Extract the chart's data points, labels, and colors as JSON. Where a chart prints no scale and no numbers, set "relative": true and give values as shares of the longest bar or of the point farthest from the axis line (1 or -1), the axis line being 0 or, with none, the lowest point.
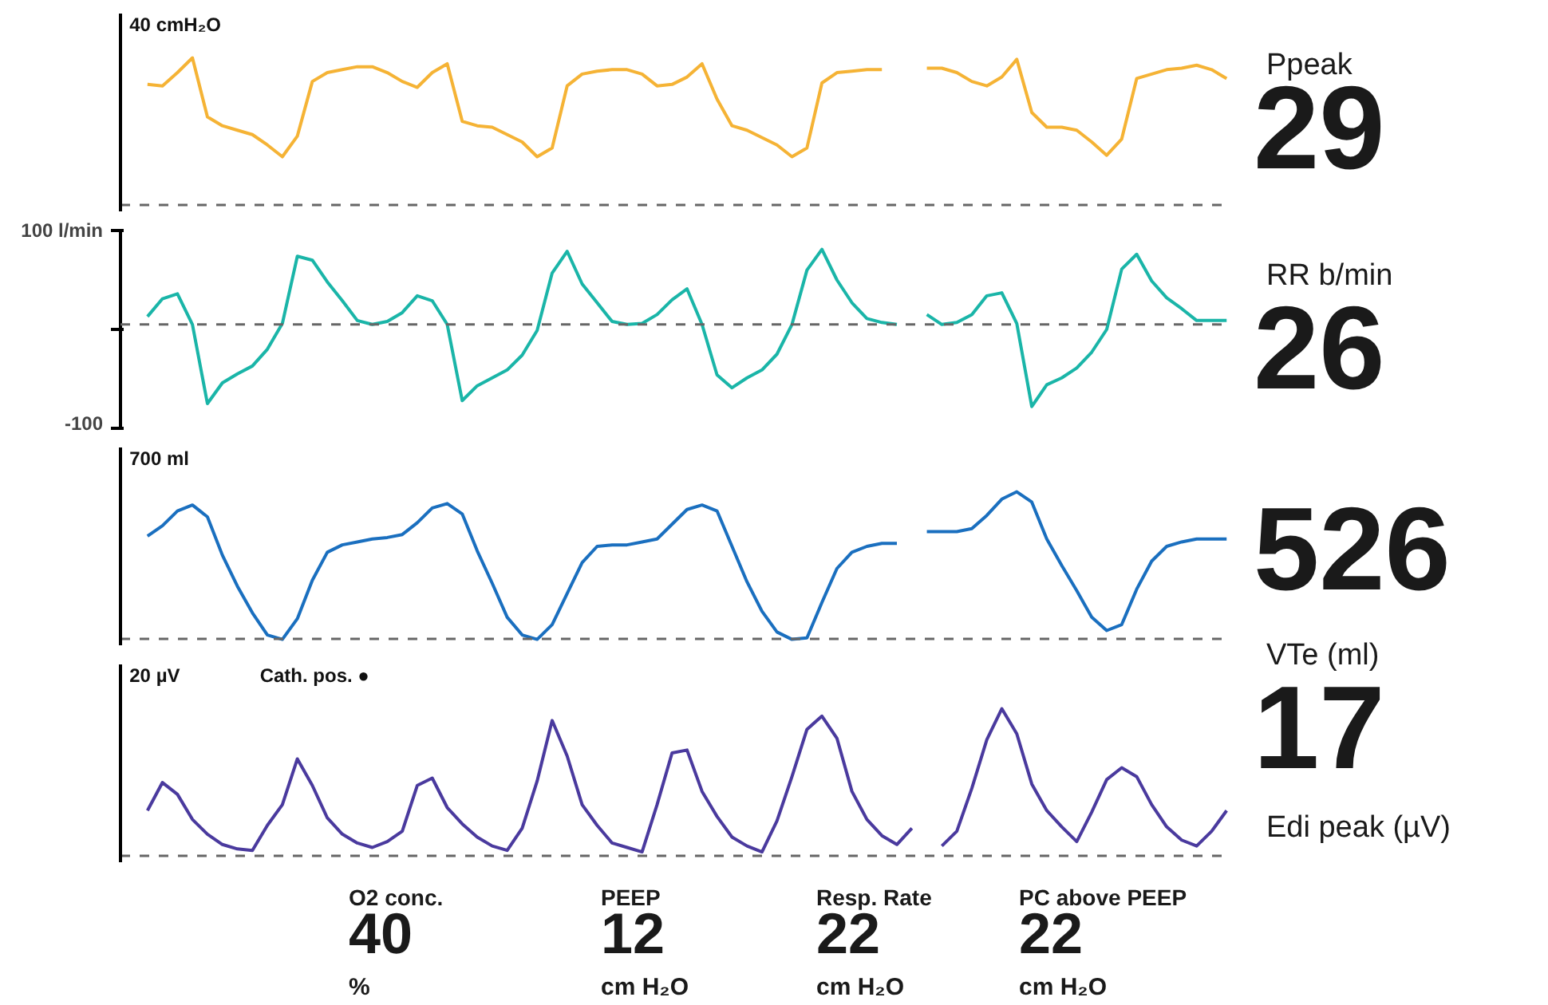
{
  "chart_data": [
    {
      "type": "line",
      "relative": true,
      "annotations": [
        "40  cmH₂O"
      ],
      "categories": [
        null,
        null,
        null,
        null,
        null,
        null,
        null,
        null,
        null,
        null,
        null,
        null,
        null,
        null,
        null,
        null,
        null,
        null,
        null,
        null,
        null,
        null,
        null,
        null,
        null,
        null,
        null,
        null,
        null,
        null,
        null,
        null,
        null,
        null,
        null,
        null,
        null,
        null,
        null,
        null,
        null,
        null,
        null,
        null,
        null,
        null,
        null,
        null,
        null,
        null,
        null,
        null,
        null,
        null,
        null,
        null,
        null,
        null,
        null,
        null,
        null,
        null,
        null,
        null,
        null,
        null,
        null,
        null,
        null,
        null,
        null,
        null,
        null
      ],
      "series": [
        {
          "color": "#f5b335",
          "values": [
            0.82,
            0.81,
            0.9,
            1.0,
            0.6,
            0.54,
            0.51,
            0.48,
            0.41,
            0.33,
            0.47,
            0.84,
            0.9,
            0.92,
            0.94,
            0.94,
            0.9,
            0.84,
            0.8,
            0.9,
            0.96,
            0.57,
            0.54,
            0.53,
            0.48,
            0.43,
            0.33,
            0.39,
            0.81,
            0.89,
            0.91,
            0.92,
            0.92,
            0.89,
            0.81,
            0.82,
            0.87,
            0.96,
            0.72,
            0.54,
            0.51,
            0.46,
            0.41,
            0.33,
            0.39,
            0.83,
            0.9,
            0.91,
            0.92,
            0.92,
            null,
            null,
            null,
            null,
            null,
            null,
            null,
            null,
            null,
            null,
            null,
            null,
            null,
            null,
            null,
            null,
            null,
            null,
            null,
            null,
            null,
            null,
            null
          ]
        },
        {
          "color": "#f5b335",
          "values": [
            null,
            null,
            null,
            null,
            null,
            null,
            null,
            null,
            null,
            null,
            null,
            null,
            null,
            null,
            null,
            null,
            null,
            null,
            null,
            null,
            null,
            null,
            null,
            null,
            null,
            null,
            null,
            null,
            null,
            null,
            null,
            null,
            null,
            null,
            null,
            null,
            null,
            null,
            null,
            null,
            null,
            null,
            null,
            null,
            null,
            null,
            null,
            null,
            null,
            null,
            null,
            null,
            0.93,
            0.93,
            0.9,
            0.84,
            0.81,
            0.87,
            0.99,
            0.63,
            0.53,
            0.53,
            0.51,
            0.43,
            0.34,
            0.45,
            0.86,
            0.89,
            0.92,
            0.93,
            0.95,
            0.92,
            0.86
          ]
        }
      ]
    },
    {
      "type": "line",
      "ylim": [
        -100,
        100
      ],
      "yticks": [
        {
          "value": 100,
          "label": "100 l/min"
        },
        {
          "value": 0,
          "label": null
        },
        -100
      ],
      "categories": [
        null,
        null,
        null,
        null,
        null,
        null,
        null,
        null,
        null,
        null,
        null,
        null,
        null,
        null,
        null,
        null,
        null,
        null,
        null,
        null,
        null,
        null,
        null,
        null,
        null,
        null,
        null,
        null,
        null,
        null,
        null,
        null,
        null,
        null,
        null,
        null,
        null,
        null,
        null,
        null,
        null,
        null,
        null,
        null,
        null,
        null,
        null,
        null,
        null,
        null,
        null,
        null,
        null,
        null,
        null,
        null,
        null,
        null,
        null,
        null,
        null,
        null,
        null,
        null,
        null,
        null,
        null,
        null,
        null,
        null,
        null,
        null,
        null
      ],
      "series": [
        {
          "color": "#1ab5a8",
          "values": [
            13,
            31,
            36,
            5,
            -75,
            -54,
            -45,
            -37,
            -20,
            6,
            74,
            70,
            48,
            29,
            9,
            5,
            8,
            17,
            34,
            29,
            5,
            -72,
            -57,
            -49,
            -41,
            -26,
            -1,
            57,
            79,
            46,
            27,
            8,
            5,
            6,
            15,
            30,
            41,
            5,
            -46,
            -59,
            -49,
            -41,
            -25,
            5,
            60,
            81,
            50,
            27,
            11,
            7,
            5,
            null,
            null,
            null,
            null,
            null,
            null,
            null,
            null,
            null,
            null,
            null,
            null,
            null,
            null,
            null,
            null,
            null,
            null,
            null,
            null,
            null,
            null
          ]
        },
        {
          "color": "#1ab5a8",
          "values": [
            null,
            null,
            null,
            null,
            null,
            null,
            null,
            null,
            null,
            null,
            null,
            null,
            null,
            null,
            null,
            null,
            null,
            null,
            null,
            null,
            null,
            null,
            null,
            null,
            null,
            null,
            null,
            null,
            null,
            null,
            null,
            null,
            null,
            null,
            null,
            null,
            null,
            null,
            null,
            null,
            null,
            null,
            null,
            null,
            null,
            null,
            null,
            null,
            null,
            null,
            null,
            null,
            15,
            5,
            7,
            15,
            34,
            37,
            6,
            -78,
            -56,
            -49,
            -39,
            -23,
            0,
            61,
            76,
            49,
            32,
            21,
            9,
            9,
            9
          ]
        }
      ],
      "ref_lines": [
        {
          "axis": "y",
          "value": 5,
          "color": "#666666",
          "line_style": "dashed"
        }
      ]
    },
    {
      "type": "line",
      "relative": true,
      "annotations": [
        "700 ml"
      ],
      "categories": [
        null,
        null,
        null,
        null,
        null,
        null,
        null,
        null,
        null,
        null,
        null,
        null,
        null,
        null,
        null,
        null,
        null,
        null,
        null,
        null,
        null,
        null,
        null,
        null,
        null,
        null,
        null,
        null,
        null,
        null,
        null,
        null,
        null,
        null,
        null,
        null,
        null,
        null,
        null,
        null,
        null,
        null,
        null,
        null,
        null,
        null,
        null,
        null,
        null,
        null,
        null,
        null,
        null,
        null,
        null,
        null,
        null,
        null,
        null,
        null,
        null,
        null,
        null,
        null,
        null,
        null,
        null,
        null,
        null,
        null,
        null,
        null,
        null
      ],
      "series": [
        {
          "color": "#1a6fbf",
          "values": [
            0.7,
            0.77,
            0.87,
            0.91,
            0.83,
            0.57,
            0.36,
            0.18,
            0.03,
            0,
            0.14,
            0.4,
            0.59,
            0.64,
            0.66,
            0.68,
            0.69,
            0.71,
            0.79,
            0.89,
            0.92,
            0.85,
            0.6,
            0.38,
            0.15,
            0.03,
            0,
            0.1,
            0.31,
            0.52,
            0.63,
            0.64,
            0.64,
            0.66,
            0.68,
            0.78,
            0.88,
            0.91,
            0.87,
            0.63,
            0.39,
            0.19,
            0.05,
            0,
            0.01,
            0.25,
            0.48,
            0.59,
            0.63,
            0.65,
            0.65,
            null,
            null,
            null,
            null,
            null,
            null,
            null,
            null,
            null,
            null,
            null,
            null,
            null,
            null,
            null,
            null,
            null,
            null,
            null,
            null,
            null,
            null
          ]
        },
        {
          "color": "#1a6fbf",
          "values": [
            null,
            null,
            null,
            null,
            null,
            null,
            null,
            null,
            null,
            null,
            null,
            null,
            null,
            null,
            null,
            null,
            null,
            null,
            null,
            null,
            null,
            null,
            null,
            null,
            null,
            null,
            null,
            null,
            null,
            null,
            null,
            null,
            null,
            null,
            null,
            null,
            null,
            null,
            null,
            null,
            null,
            null,
            null,
            null,
            null,
            null,
            null,
            null,
            null,
            null,
            null,
            null,
            0.73,
            0.73,
            0.73,
            0.75,
            0.84,
            0.95,
            1.0,
            0.93,
            0.68,
            0.5,
            0.33,
            0.15,
            0.06,
            0.1,
            0.34,
            0.53,
            0.63,
            0.66,
            0.68,
            0.68,
            0.68
          ]
        }
      ]
    },
    {
      "type": "line",
      "relative": true,
      "annotations": [
        "20 µV",
        "Cath. pos. ●"
      ],
      "categories": [
        null,
        null,
        null,
        null,
        null,
        null,
        null,
        null,
        null,
        null,
        null,
        null,
        null,
        null,
        null,
        null,
        null,
        null,
        null,
        null,
        null,
        null,
        null,
        null,
        null,
        null,
        null,
        null,
        null,
        null,
        null,
        null,
        null,
        null,
        null,
        null,
        null,
        null,
        null,
        null,
        null,
        null,
        null,
        null,
        null,
        null,
        null,
        null,
        null,
        null,
        null,
        null,
        null,
        null,
        null,
        null,
        null,
        null,
        null,
        null,
        null,
        null,
        null,
        null,
        null,
        null,
        null,
        null,
        null,
        null,
        null,
        null,
        null
      ],
      "series": [
        {
          "color": "#4a3a9e",
          "values": [
            0.31,
            0.5,
            0.42,
            0.25,
            0.15,
            0.08,
            0.05,
            0.04,
            0.21,
            0.35,
            0.66,
            0.48,
            0.26,
            0.15,
            0.09,
            0.06,
            0.1,
            0.17,
            0.48,
            0.53,
            0.33,
            0.22,
            0.13,
            0.07,
            0.04,
            0.19,
            0.51,
            0.92,
            0.68,
            0.35,
            0.21,
            0.09,
            0.06,
            0.03,
            0.35,
            0.7,
            0.72,
            0.44,
            0.27,
            0.13,
            0.07,
            0.03,
            0.24,
            0.54,
            0.86,
            0.95,
            0.8,
            0.44,
            0.25,
            0.14,
            0.08,
            0.19,
            null,
            null,
            null,
            null,
            null,
            null,
            null,
            null,
            null,
            null,
            null,
            null,
            null,
            null,
            null,
            null,
            null,
            null,
            null,
            null,
            null
          ]
        },
        {
          "color": "#4a3a9e",
          "values": [
            null,
            null,
            null,
            null,
            null,
            null,
            null,
            null,
            null,
            null,
            null,
            null,
            null,
            null,
            null,
            null,
            null,
            null,
            null,
            null,
            null,
            null,
            null,
            null,
            null,
            null,
            null,
            null,
            null,
            null,
            null,
            null,
            null,
            null,
            null,
            null,
            null,
            null,
            null,
            null,
            null,
            null,
            null,
            null,
            null,
            null,
            null,
            null,
            null,
            null,
            null,
            null,
            null,
            0.07,
            0.17,
            0.46,
            0.79,
            1.0,
            0.83,
            0.49,
            0.31,
            0.2,
            0.1,
            0.3,
            0.52,
            0.6,
            0.54,
            0.35,
            0.2,
            0.11,
            0.07,
            0.17,
            0.31
          ]
        }
      ]
    },
    {
      "type": "other",
      "annotations": [
        "Ppeak",
        "29",
        "RR b/min",
        "26",
        "526",
        "VTe (ml)",
        "17",
        "Edi peak (µV)"
      ]
    },
    {
      "type": "other",
      "annotations": [
        "O2 conc.",
        "40",
        "%",
        "PEEP",
        "12",
        "cm H₂O",
        "Resp. Rate",
        "22",
        "cm H₂O",
        "PC above PEEP",
        "22",
        "cm H₂O"
      ]
    }
  ]
}
